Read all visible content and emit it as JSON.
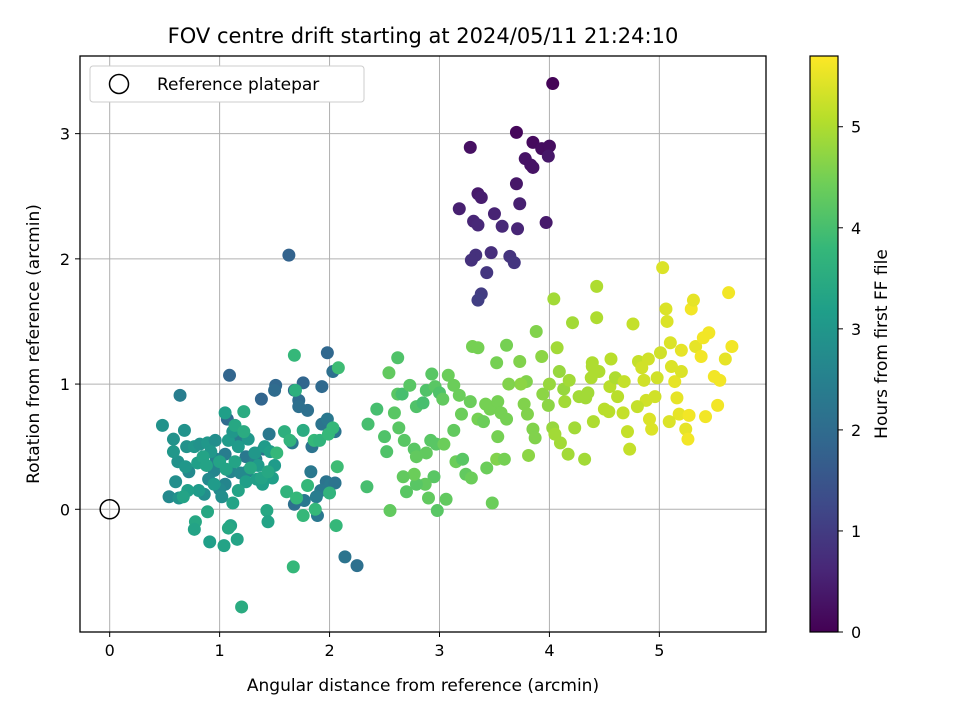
{
  "chart_data": {
    "type": "scatter",
    "title": "FOV centre drift starting at 2024/05/11 21:24:10",
    "xlabel": "Angular distance from reference (arcmin)",
    "ylabel": "Rotation from reference (arcmin)",
    "xlim": [
      -0.27,
      5.97
    ],
    "ylim": [
      -0.98,
      3.62
    ],
    "xticks": [
      0,
      1,
      2,
      3,
      4,
      5
    ],
    "yticks": [
      0,
      1,
      2,
      3
    ],
    "grid": true,
    "legend": {
      "placement": "top-left",
      "entries": [
        "Reference platepar"
      ]
    },
    "reference_point": {
      "x": 0,
      "y": 0,
      "label": "Reference platepar"
    },
    "colorbar": {
      "label": "Hours from first FF file",
      "range": [
        0,
        5.7
      ],
      "ticks": [
        0,
        1,
        2,
        3,
        4,
        5
      ],
      "colormap": [
        "#440154",
        "#482878",
        "#3e4a89",
        "#31688e",
        "#26828e",
        "#1f9e89",
        "#35b779",
        "#6ece58",
        "#b5de2b",
        "#fde725"
      ]
    },
    "points": [
      [
        4.03,
        3.4,
        0.05
      ],
      [
        3.7,
        3.01,
        0.1
      ],
      [
        3.85,
        2.93,
        0.15
      ],
      [
        3.93,
        2.88,
        0.2
      ],
      [
        4.0,
        2.9,
        0.2
      ],
      [
        3.28,
        2.89,
        0.25
      ],
      [
        3.78,
        2.8,
        0.3
      ],
      [
        3.83,
        2.75,
        0.3
      ],
      [
        3.85,
        2.73,
        0.3
      ],
      [
        3.99,
        2.82,
        0.35
      ],
      [
        3.35,
        2.52,
        0.4
      ],
      [
        3.38,
        2.49,
        0.45
      ],
      [
        3.7,
        2.6,
        0.35
      ],
      [
        3.73,
        2.44,
        0.5
      ],
      [
        3.18,
        2.4,
        0.5
      ],
      [
        3.5,
        2.36,
        0.55
      ],
      [
        3.31,
        2.3,
        0.6
      ],
      [
        3.35,
        2.27,
        0.65
      ],
      [
        3.57,
        2.26,
        0.65
      ],
      [
        3.71,
        2.24,
        0.6
      ],
      [
        3.97,
        2.29,
        0.4
      ],
      [
        3.47,
        2.05,
        0.75
      ],
      [
        3.33,
        2.03,
        0.8
      ],
      [
        3.29,
        1.99,
        0.8
      ],
      [
        3.64,
        2.02,
        0.85
      ],
      [
        3.68,
        1.97,
        0.9
      ],
      [
        3.43,
        1.89,
        0.9
      ],
      [
        3.38,
        1.72,
        1.0
      ],
      [
        3.35,
        1.67,
        1.05
      ],
      [
        1.63,
        2.03,
        1.8
      ],
      [
        1.98,
        1.25,
        1.9
      ],
      [
        1.09,
        1.07,
        1.85
      ],
      [
        1.51,
        0.99,
        1.9
      ],
      [
        1.76,
        1.01,
        1.85
      ],
      [
        1.5,
        0.95,
        2.0
      ],
      [
        1.68,
        0.95,
        1.9
      ],
      [
        1.93,
        0.98,
        1.95
      ],
      [
        2.03,
        1.1,
        2.1
      ],
      [
        1.38,
        0.88,
        1.85
      ],
      [
        1.72,
        0.87,
        2.0
      ],
      [
        1.8,
        0.79,
        2.1
      ],
      [
        1.72,
        0.82,
        2.1
      ],
      [
        1.07,
        0.72,
        2.0
      ],
      [
        1.93,
        0.68,
        2.2
      ],
      [
        2.05,
        0.62,
        2.2
      ],
      [
        1.66,
        0.53,
        2.3
      ],
      [
        1.4,
        0.48,
        2.2
      ],
      [
        1.98,
        0.72,
        2.3
      ],
      [
        1.45,
        0.6,
        2.3
      ],
      [
        1.17,
        0.56,
        2.4
      ],
      [
        1.24,
        0.42,
        2.3
      ],
      [
        1.84,
        0.5,
        2.2
      ],
      [
        1.83,
        0.3,
        2.3
      ],
      [
        1.97,
        0.22,
        2.2
      ],
      [
        1.92,
        0.15,
        2.3
      ],
      [
        1.88,
        0.1,
        2.4
      ],
      [
        1.77,
        0.07,
        2.3
      ],
      [
        2.01,
        0.2,
        2.3
      ],
      [
        2.05,
        0.21,
        2.2
      ],
      [
        1.89,
        -0.05,
        2.3
      ],
      [
        1.68,
        0.04,
        2.1
      ],
      [
        2.14,
        -0.38,
        2.2
      ],
      [
        2.25,
        -0.45,
        2.1
      ],
      [
        0.64,
        0.91,
        2.4
      ],
      [
        1.05,
        0.44,
        2.4
      ],
      [
        0.97,
        0.4,
        2.5
      ],
      [
        1.1,
        0.3,
        2.6
      ],
      [
        1.05,
        0.2,
        2.6
      ],
      [
        1.0,
        0.16,
        2.7
      ],
      [
        1.25,
        0.3,
        2.6
      ],
      [
        1.33,
        0.4,
        2.5
      ],
      [
        1.19,
        0.29,
        2.7
      ],
      [
        0.95,
        0.31,
        2.6
      ],
      [
        1.02,
        0.1,
        2.8
      ],
      [
        0.86,
        0.12,
        2.8
      ],
      [
        0.9,
        0.24,
        2.7
      ],
      [
        0.54,
        0.1,
        2.7
      ],
      [
        0.6,
        0.22,
        2.8
      ],
      [
        0.63,
        0.09,
        2.9
      ],
      [
        0.72,
        0.3,
        2.7
      ],
      [
        0.58,
        0.56,
        2.9
      ],
      [
        0.62,
        0.38,
        2.9
      ],
      [
        0.7,
        0.5,
        2.9
      ],
      [
        0.77,
        0.5,
        3.0
      ],
      [
        0.82,
        0.52,
        2.9
      ],
      [
        0.89,
        0.53,
        3.0
      ],
      [
        0.96,
        0.55,
        2.8
      ],
      [
        0.68,
        0.63,
        2.9
      ],
      [
        0.48,
        0.67,
        2.9
      ],
      [
        0.58,
        0.46,
        3.0
      ],
      [
        0.69,
        0.34,
        3.0
      ],
      [
        0.92,
        0.46,
        3.0
      ],
      [
        1.08,
        0.55,
        3.1
      ],
      [
        1.12,
        0.62,
        3.0
      ],
      [
        1.17,
        0.5,
        3.1
      ],
      [
        1.26,
        0.56,
        3.0
      ],
      [
        1.32,
        0.45,
        3.0
      ],
      [
        1.35,
        0.35,
        3.1
      ],
      [
        1.41,
        0.5,
        3.1
      ],
      [
        1.5,
        0.35,
        3.1
      ],
      [
        1.46,
        0.46,
        3.2
      ],
      [
        1.48,
        0.25,
        3.2
      ],
      [
        1.39,
        0.2,
        3.2
      ],
      [
        1.34,
        0.24,
        3.2
      ],
      [
        1.24,
        0.22,
        3.2
      ],
      [
        1.17,
        0.15,
        3.3
      ],
      [
        1.12,
        0.05,
        3.3
      ],
      [
        0.95,
        0.2,
        3.1
      ],
      [
        0.81,
        0.15,
        3.1
      ],
      [
        0.71,
        0.15,
        3.2
      ],
      [
        0.67,
        0.1,
        3.3
      ],
      [
        0.8,
        0.37,
        3.2
      ],
      [
        0.85,
        0.42,
        3.3
      ],
      [
        0.88,
        0.35,
        3.3
      ],
      [
        1.0,
        0.38,
        3.3
      ],
      [
        1.06,
        0.32,
        3.3
      ],
      [
        1.14,
        0.38,
        3.3
      ],
      [
        1.28,
        0.33,
        3.4
      ],
      [
        1.38,
        0.25,
        3.3
      ],
      [
        1.44,
        0.3,
        3.4
      ],
      [
        1.43,
        -0.01,
        3.4
      ],
      [
        1.44,
        -0.1,
        3.3
      ],
      [
        1.1,
        -0.13,
        3.3
      ],
      [
        1.08,
        -0.15,
        3.4
      ],
      [
        1.16,
        -0.24,
        3.3
      ],
      [
        0.91,
        -0.26,
        3.2
      ],
      [
        1.04,
        -0.29,
        3.3
      ],
      [
        0.78,
        -0.1,
        3.4
      ],
      [
        0.77,
        -0.16,
        3.3
      ],
      [
        0.89,
        -0.02,
        3.4
      ],
      [
        1.2,
        -0.78,
        3.5
      ],
      [
        1.05,
        0.77,
        3.2
      ],
      [
        1.22,
        0.78,
        3.5
      ],
      [
        1.14,
        0.67,
        3.4
      ],
      [
        1.22,
        0.62,
        3.5
      ],
      [
        1.59,
        0.62,
        3.6
      ],
      [
        1.64,
        0.55,
        3.7
      ],
      [
        1.76,
        0.63,
        3.5
      ],
      [
        1.86,
        0.55,
        3.8
      ],
      [
        1.91,
        0.55,
        3.7
      ],
      [
        1.99,
        0.6,
        3.8
      ],
      [
        1.52,
        0.45,
        3.8
      ],
      [
        1.61,
        0.14,
        3.7
      ],
      [
        1.7,
        0.09,
        3.8
      ],
      [
        1.8,
        0.19,
        3.8
      ],
      [
        1.76,
        -0.05,
        3.8
      ],
      [
        1.87,
        0.0,
        3.8
      ],
      [
        2.06,
        -0.13,
        3.8
      ],
      [
        2.0,
        0.13,
        3.7
      ],
      [
        1.67,
        -0.46,
        3.8
      ],
      [
        1.68,
        1.23,
        3.8
      ],
      [
        1.69,
        0.95,
        3.6
      ],
      [
        2.08,
        1.13,
        3.9
      ],
      [
        2.03,
        0.65,
        3.8
      ],
      [
        2.07,
        0.34,
        3.9
      ],
      [
        2.34,
        0.18,
        4.0
      ],
      [
        2.35,
        0.68,
        4.0
      ],
      [
        2.43,
        0.8,
        4.0
      ],
      [
        2.52,
        0.46,
        4.1
      ],
      [
        2.5,
        0.58,
        4.1
      ],
      [
        2.59,
        0.77,
        4.2
      ],
      [
        2.62,
        1.21,
        4.1
      ],
      [
        2.62,
        0.92,
        4.2
      ],
      [
        2.66,
        0.92,
        4.0
      ],
      [
        2.73,
        0.99,
        4.2
      ],
      [
        2.79,
        0.82,
        4.1
      ],
      [
        2.85,
        0.85,
        4.0
      ],
      [
        2.88,
        0.95,
        4.1
      ],
      [
        2.93,
        1.08,
        4.2
      ],
      [
        2.96,
        0.98,
        4.2
      ],
      [
        3.0,
        0.93,
        4.1
      ],
      [
        3.03,
        0.88,
        4.3
      ],
      [
        2.63,
        0.65,
        4.2
      ],
      [
        2.68,
        0.55,
        4.2
      ],
      [
        2.77,
        0.48,
        4.2
      ],
      [
        2.79,
        0.42,
        4.3
      ],
      [
        2.88,
        0.45,
        4.3
      ],
      [
        2.92,
        0.55,
        4.2
      ],
      [
        2.97,
        0.52,
        4.2
      ],
      [
        3.04,
        0.52,
        4.4
      ],
      [
        3.13,
        0.63,
        4.3
      ],
      [
        3.15,
        0.38,
        4.4
      ],
      [
        3.21,
        0.4,
        4.2
      ],
      [
        3.24,
        0.28,
        4.3
      ],
      [
        3.29,
        0.25,
        4.4
      ],
      [
        3.43,
        0.33,
        4.4
      ],
      [
        2.95,
        0.26,
        4.2
      ],
      [
        2.87,
        0.2,
        4.3
      ],
      [
        2.79,
        0.2,
        4.2
      ],
      [
        2.77,
        0.28,
        4.4
      ],
      [
        2.67,
        0.26,
        4.3
      ],
      [
        2.7,
        0.14,
        4.2
      ],
      [
        2.55,
        -0.01,
        4.3
      ],
      [
        2.9,
        0.09,
        4.3
      ],
      [
        3.06,
        0.08,
        4.3
      ],
      [
        2.98,
        -0.01,
        4.2
      ],
      [
        3.48,
        0.05,
        4.4
      ],
      [
        2.54,
        1.09,
        4.3
      ],
      [
        3.08,
        1.07,
        4.4
      ],
      [
        3.13,
        0.99,
        4.4
      ],
      [
        3.18,
        0.91,
        4.4
      ],
      [
        3.2,
        0.76,
        4.4
      ],
      [
        3.28,
        0.86,
        4.4
      ],
      [
        3.35,
        0.72,
        4.5
      ],
      [
        3.4,
        0.7,
        4.4
      ],
      [
        3.42,
        0.84,
        4.5
      ],
      [
        3.46,
        0.8,
        4.5
      ],
      [
        3.5,
        0.82,
        4.5
      ],
      [
        3.53,
        0.86,
        4.5
      ],
      [
        3.56,
        0.77,
        4.5
      ],
      [
        3.61,
        0.72,
        4.5
      ],
      [
        3.3,
        1.3,
        4.5
      ],
      [
        3.35,
        1.29,
        4.5
      ],
      [
        3.61,
        1.31,
        4.5
      ],
      [
        3.52,
        1.17,
        4.5
      ],
      [
        3.73,
        1.18,
        4.6
      ],
      [
        3.79,
        1.02,
        4.6
      ],
      [
        3.77,
        0.84,
        4.6
      ],
      [
        3.8,
        0.76,
        4.6
      ],
      [
        3.85,
        0.64,
        4.6
      ],
      [
        3.88,
        1.42,
        4.6
      ],
      [
        3.93,
        1.22,
        4.7
      ],
      [
        3.87,
        0.57,
        4.6
      ],
      [
        3.81,
        0.43,
        4.7
      ],
      [
        3.53,
        0.58,
        4.5
      ],
      [
        3.52,
        0.4,
        4.6
      ],
      [
        3.59,
        0.4,
        4.5
      ],
      [
        3.74,
        1.0,
        4.7
      ],
      [
        3.63,
        1.0,
        4.6
      ],
      [
        3.94,
        0.92,
        4.7
      ],
      [
        3.99,
        0.83,
        4.7
      ],
      [
        4.0,
        1.0,
        4.8
      ],
      [
        4.04,
        1.68,
        4.9
      ],
      [
        4.07,
        1.29,
        4.9
      ],
      [
        4.09,
        1.1,
        4.8
      ],
      [
        4.13,
        0.96,
        4.8
      ],
      [
        4.14,
        0.86,
        4.9
      ],
      [
        4.18,
        1.03,
        4.9
      ],
      [
        4.21,
        1.49,
        4.9
      ],
      [
        4.03,
        0.65,
        4.8
      ],
      [
        4.05,
        0.6,
        4.9
      ],
      [
        4.1,
        0.53,
        4.9
      ],
      [
        4.17,
        0.44,
        4.9
      ],
      [
        4.23,
        0.65,
        4.9
      ],
      [
        4.32,
        0.4,
        4.9
      ],
      [
        4.27,
        0.9,
        4.9
      ],
      [
        4.33,
        0.89,
        4.9
      ],
      [
        4.35,
        0.93,
        4.9
      ],
      [
        4.38,
        1.05,
        5.0
      ],
      [
        4.39,
        1.17,
        5.0
      ],
      [
        4.43,
        1.53,
        5.0
      ],
      [
        4.43,
        1.78,
        5.0
      ],
      [
        4.39,
        1.14,
        5.0
      ],
      [
        4.4,
        0.7,
        5.0
      ],
      [
        4.45,
        1.1,
        5.0
      ],
      [
        4.5,
        0.8,
        5.1
      ],
      [
        4.55,
        0.98,
        5.1
      ],
      [
        4.56,
        1.2,
        5.1
      ],
      [
        4.6,
        1.05,
        5.0
      ],
      [
        4.62,
        0.9,
        5.1
      ],
      [
        4.67,
        0.77,
        5.2
      ],
      [
        4.71,
        0.62,
        5.2
      ],
      [
        4.73,
        0.48,
        5.2
      ],
      [
        4.76,
        1.48,
        5.2
      ],
      [
        4.81,
        1.18,
        5.2
      ],
      [
        4.84,
        1.13,
        5.3
      ],
      [
        4.86,
        1.03,
        5.3
      ],
      [
        4.88,
        0.87,
        5.3
      ],
      [
        4.91,
        0.72,
        5.4
      ],
      [
        4.93,
        0.64,
        5.4
      ],
      [
        4.96,
        0.9,
        5.3
      ],
      [
        4.98,
        1.05,
        5.3
      ],
      [
        5.01,
        1.25,
        5.3
      ],
      [
        5.03,
        1.93,
        5.4
      ],
      [
        5.06,
        1.6,
        5.4
      ],
      [
        5.07,
        1.5,
        5.4
      ],
      [
        5.1,
        1.33,
        5.4
      ],
      [
        5.11,
        1.14,
        5.4
      ],
      [
        5.14,
        1.02,
        5.5
      ],
      [
        5.16,
        0.89,
        5.5
      ],
      [
        5.18,
        0.76,
        5.5
      ],
      [
        5.2,
        1.27,
        5.5
      ],
      [
        5.24,
        0.64,
        5.5
      ],
      [
        5.26,
        0.56,
        5.6
      ],
      [
        5.27,
        0.75,
        5.6
      ],
      [
        5.29,
        1.6,
        5.6
      ],
      [
        5.31,
        1.67,
        5.5
      ],
      [
        5.33,
        1.3,
        5.5
      ],
      [
        5.38,
        1.22,
        5.6
      ],
      [
        5.4,
        1.37,
        5.6
      ],
      [
        5.42,
        0.74,
        5.6
      ],
      [
        5.45,
        1.41,
        5.6
      ],
      [
        5.5,
        1.06,
        5.6
      ],
      [
        5.53,
        0.83,
        5.6
      ],
      [
        5.55,
        1.03,
        5.6
      ],
      [
        5.63,
        1.73,
        5.6
      ],
      [
        5.66,
        1.3,
        5.6
      ],
      [
        5.6,
        1.2,
        5.5
      ],
      [
        4.68,
        1.02,
        5.2
      ],
      [
        4.54,
        0.78,
        5.1
      ],
      [
        4.8,
        0.82,
        5.2
      ],
      [
        5.09,
        0.7,
        5.4
      ],
      [
        5.2,
        1.1,
        5.4
      ],
      [
        4.9,
        1.2,
        5.3
      ]
    ]
  }
}
